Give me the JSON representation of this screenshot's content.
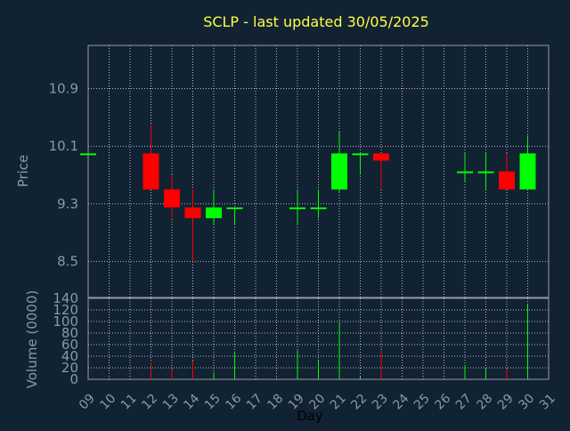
{
  "chart_data": {
    "type": "candlestick",
    "title": "SCLP - last updated 30/05/2025",
    "price_panel": {
      "ylabel": "Price",
      "ylim": [
        8.0,
        11.5
      ],
      "yticks": [
        "10.9",
        "10.1",
        "9.3",
        "8.5"
      ],
      "ytick_values": [
        10.9,
        10.1,
        9.3,
        8.5
      ],
      "grid": true
    },
    "volume_panel": {
      "ylabel": "Volume (0000)",
      "ylim": [
        0,
        140
      ],
      "yticks": [
        "140",
        "120",
        "100",
        "80",
        "60",
        "40",
        "20",
        "0"
      ],
      "ytick_values": [
        140,
        120,
        100,
        80,
        60,
        40,
        20,
        0
      ],
      "grid": true
    },
    "xlabel": "Day",
    "xticks": [
      "09",
      "10",
      "11",
      "12",
      "13",
      "14",
      "15",
      "16",
      "17",
      "18",
      "19",
      "20",
      "21",
      "22",
      "23",
      "24",
      "25",
      "26",
      "27",
      "28",
      "29",
      "30",
      "31"
    ],
    "candles": [
      {
        "day": "09",
        "open": 10.0,
        "high": 10.0,
        "low": 10.0,
        "close": 10.0,
        "volume": 0
      },
      {
        "day": "12",
        "open": 10.0,
        "high": 10.4,
        "low": 9.5,
        "close": 9.5,
        "volume": 30
      },
      {
        "day": "13",
        "open": 9.5,
        "high": 9.7,
        "low": 9.1,
        "close": 9.25,
        "volume": 18
      },
      {
        "day": "14",
        "open": 9.25,
        "high": 9.5,
        "low": 8.5,
        "close": 9.1,
        "volume": 32
      },
      {
        "day": "15",
        "open": 9.1,
        "high": 9.5,
        "low": 9.0,
        "close": 9.25,
        "volume": 12
      },
      {
        "day": "16",
        "open": 9.25,
        "high": 9.25,
        "low": 9.0,
        "close": 9.25,
        "volume": 48
      },
      {
        "day": "19",
        "open": 9.25,
        "high": 9.5,
        "low": 9.0,
        "close": 9.25,
        "volume": 50
      },
      {
        "day": "20",
        "open": 9.25,
        "high": 9.5,
        "low": 9.1,
        "close": 9.25,
        "volume": 32
      },
      {
        "day": "21",
        "open": 9.5,
        "high": 10.3,
        "low": 9.45,
        "close": 10.0,
        "volume": 98
      },
      {
        "day": "22",
        "open": 10.0,
        "high": 10.0,
        "low": 9.7,
        "close": 10.0,
        "volume": 5
      },
      {
        "day": "23",
        "open": 10.0,
        "high": 10.0,
        "low": 9.5,
        "close": 9.9,
        "volume": 50
      },
      {
        "day": "27",
        "open": 9.75,
        "high": 10.0,
        "low": 9.6,
        "close": 9.75,
        "volume": 25
      },
      {
        "day": "28",
        "open": 9.75,
        "high": 10.0,
        "low": 9.5,
        "close": 9.75,
        "volume": 18
      },
      {
        "day": "29",
        "open": 9.75,
        "high": 10.0,
        "low": 9.5,
        "close": 9.5,
        "volume": 18
      },
      {
        "day": "30",
        "open": 9.5,
        "high": 10.25,
        "low": 9.5,
        "close": 10.0,
        "volume": 130
      }
    ],
    "colors": {
      "background": "#112233",
      "plot_border": "#9999aa",
      "grid": "#bbbbcc",
      "title": "#ffff44",
      "axis_text": "#8899aa",
      "up": "#00ff00",
      "down": "#ff0000"
    }
  }
}
